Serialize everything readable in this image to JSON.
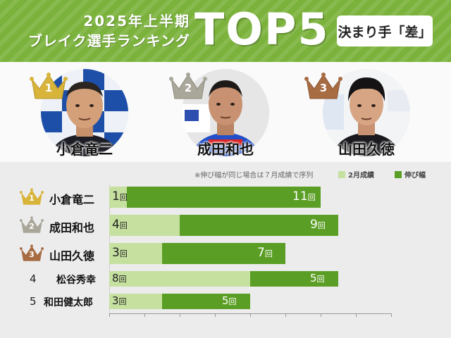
{
  "header": {
    "subtitle_line1": "2025年上半期",
    "subtitle_line2": "ブレイク選手ランキング",
    "main_title": "TOP5",
    "badge": "決まり手「差」"
  },
  "top3": [
    {
      "rank": "1",
      "name": "小倉竜二",
      "crown_color": "#d9b43a"
    },
    {
      "rank": "2",
      "name": "成田和也",
      "crown_color": "#a9a69a"
    },
    {
      "rank": "3",
      "name": "山田久徳",
      "crown_color": "#a86c43"
    }
  ],
  "colors": {
    "green": "#5b9e25",
    "light_green": "#c6e0a0",
    "header_green": "#7ab23b",
    "gold": "#d9b43a",
    "silver": "#a9a69a",
    "bronze": "#a86c43"
  },
  "chart_data": {
    "type": "bar",
    "orientation": "horizontal",
    "stacked": true,
    "note": "※伸び幅が同じ場合は７月成績で序列",
    "unit": "回",
    "categories": [
      "小倉竜二",
      "成田和也",
      "山田久徳",
      "松谷秀幸",
      "和田健太郎"
    ],
    "ranks": [
      "1",
      "2",
      "3",
      "4",
      "5"
    ],
    "series": [
      {
        "name": "2月成績",
        "color": "#c6e0a0",
        "values": [
          1,
          4,
          3,
          8,
          3
        ]
      },
      {
        "name": "伸び幅",
        "color": "#5b9e25",
        "values": [
          11,
          9,
          7,
          5,
          5
        ]
      }
    ],
    "xlim": [
      0,
      16
    ],
    "legend_position": "top-right",
    "grid": false
  }
}
